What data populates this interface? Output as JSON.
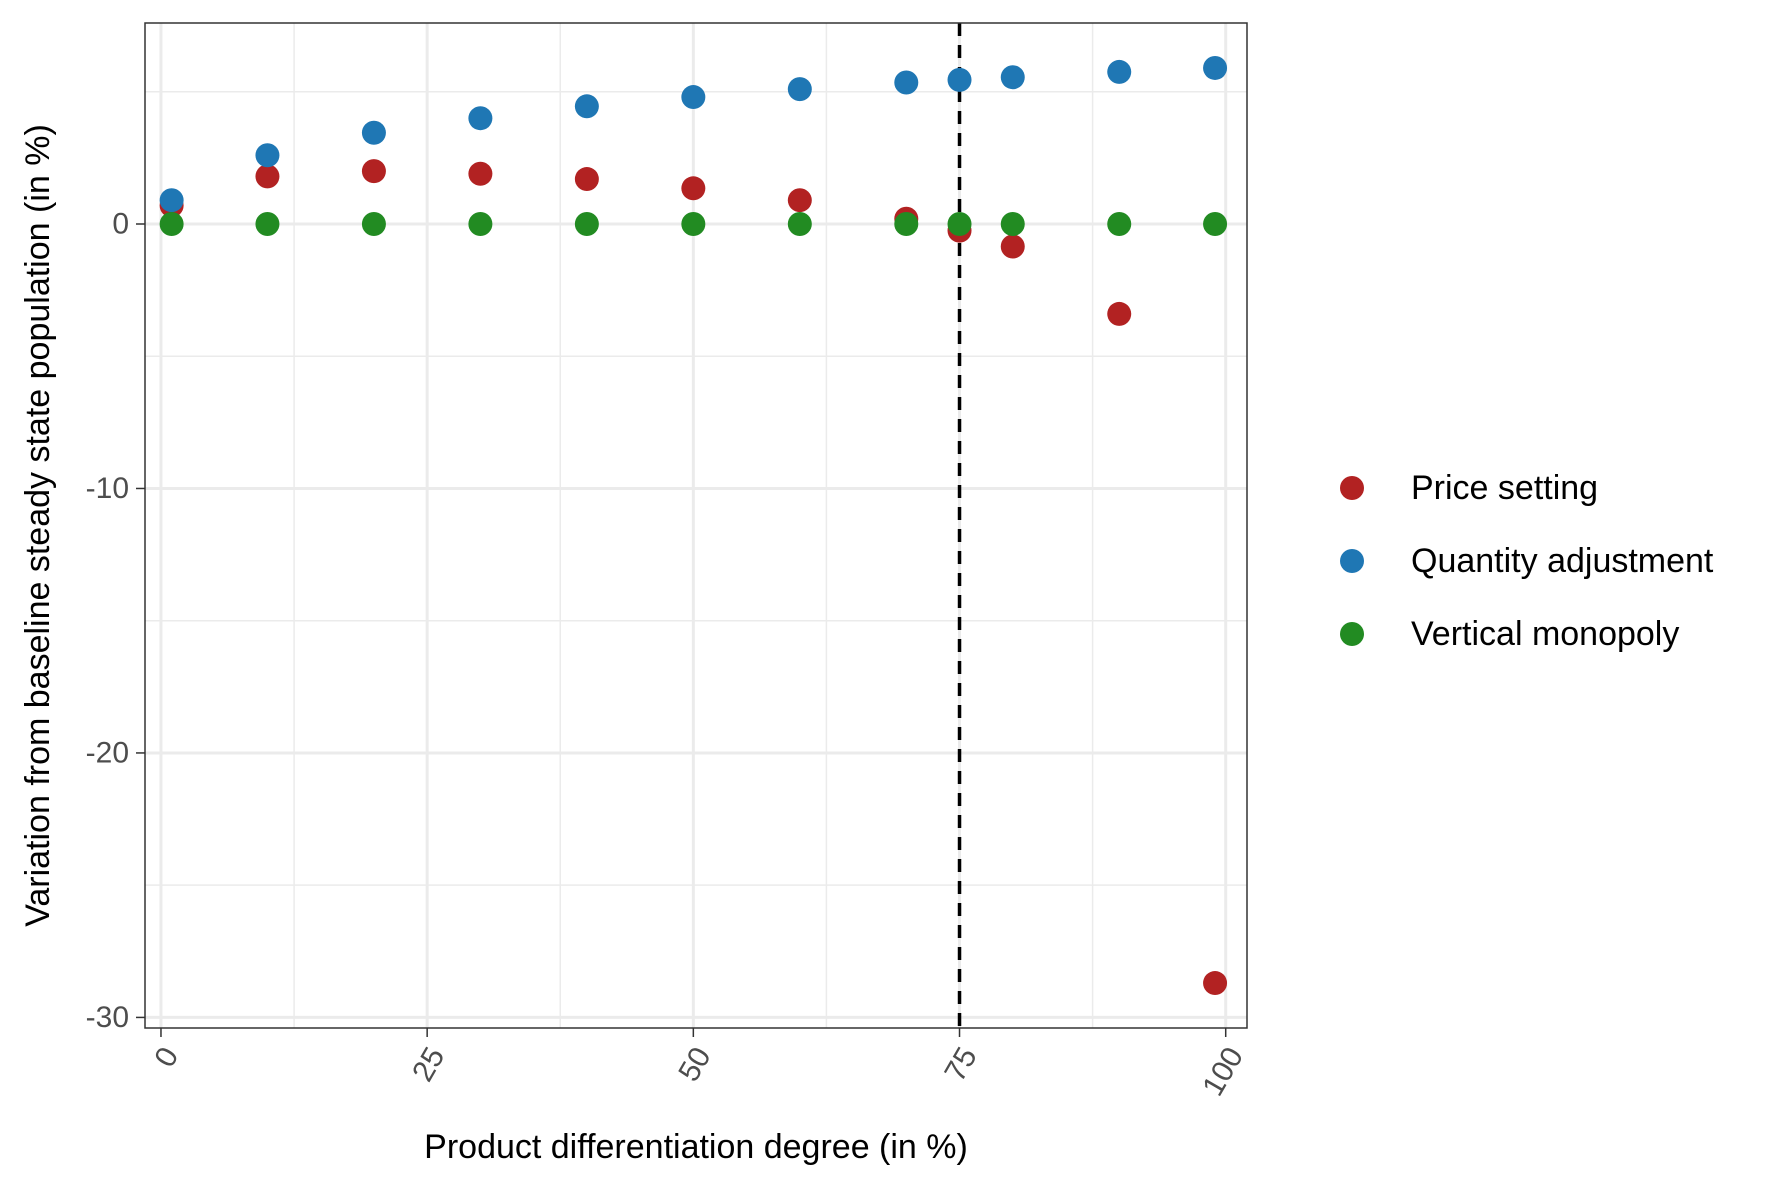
{
  "chart_data": {
    "type": "scatter",
    "xlabel": "Product differentiation degree (in %)",
    "ylabel": "Variation from baseline steady state population (in %)",
    "xlim": [
      -1.5,
      102
    ],
    "ylim": [
      -30.4,
      7.6
    ],
    "x_ticks": [
      0,
      25,
      50,
      75,
      100
    ],
    "y_ticks": [
      0,
      -10,
      -20,
      -30
    ],
    "x_minor": [
      12.5,
      37.5,
      62.5,
      87.5
    ],
    "y_minor": [
      5,
      -5,
      -15,
      -25
    ],
    "grid": true,
    "legend_position": "right",
    "vline": {
      "x": 75,
      "style": "dashed",
      "color": "#000000"
    },
    "series": [
      {
        "name": "Price setting",
        "color": "#B22222",
        "points": [
          [
            1,
            0.7
          ],
          [
            10,
            1.8
          ],
          [
            20,
            2.0
          ],
          [
            30,
            1.9
          ],
          [
            40,
            1.7
          ],
          [
            50,
            1.35
          ],
          [
            60,
            0.9
          ],
          [
            70,
            0.2
          ],
          [
            75,
            -0.25
          ],
          [
            80,
            -0.85
          ],
          [
            90,
            -3.4
          ],
          [
            99,
            -28.7
          ]
        ]
      },
      {
        "name": "Quantity adjustment",
        "color": "#1F77B4",
        "points": [
          [
            1,
            0.9
          ],
          [
            10,
            2.6
          ],
          [
            20,
            3.45
          ],
          [
            30,
            4.0
          ],
          [
            40,
            4.45
          ],
          [
            50,
            4.8
          ],
          [
            60,
            5.1
          ],
          [
            70,
            5.35
          ],
          [
            75,
            5.45
          ],
          [
            80,
            5.55
          ],
          [
            90,
            5.75
          ],
          [
            99,
            5.9
          ]
        ]
      },
      {
        "name": "Vertical monopoly",
        "color": "#228B22",
        "points": [
          [
            1,
            0
          ],
          [
            10,
            0
          ],
          [
            20,
            0
          ],
          [
            30,
            0
          ],
          [
            40,
            0
          ],
          [
            50,
            0
          ],
          [
            60,
            0
          ],
          [
            70,
            0
          ],
          [
            75,
            0
          ],
          [
            80,
            0
          ],
          [
            90,
            0
          ],
          [
            99,
            0
          ]
        ]
      }
    ]
  }
}
